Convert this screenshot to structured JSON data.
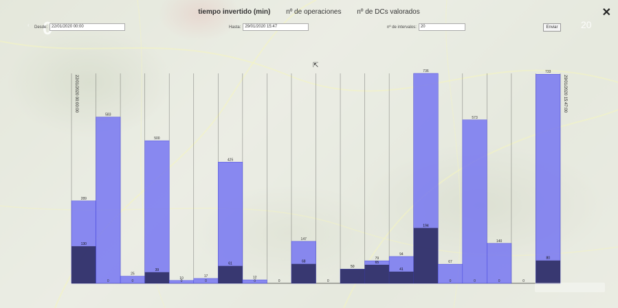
{
  "header": {
    "tabs": [
      {
        "label": "tiempo invertido (min)",
        "active": true
      },
      {
        "label": "nº de operaciones",
        "active": false
      },
      {
        "label": "nº de DCs valorados",
        "active": false
      }
    ],
    "close_icon": "close-icon"
  },
  "form": {
    "desde_label": "Desde:",
    "desde_value": "22/01/2020 00:00",
    "hasta_label": "Hasta:",
    "hasta_value": "29/01/2020 15:47",
    "intervalos_label": "nº de intervalos:",
    "intervalos_value": "20",
    "send_label": "Enviar"
  },
  "nav": {
    "left": "0",
    "right": "20"
  },
  "colors": {
    "bar_light": "#6f6ff2",
    "bar_dark": "#2a2a5a",
    "line": "#555555"
  },
  "chart_data": {
    "type": "bar",
    "stacked": true,
    "first_label": "22/01/2020 00:00:00",
    "last_label": "29/01/2020 15:47:00",
    "divider_labels": [
      "",
      "",
      "",
      "",
      "",
      "",
      "",
      "",
      "",
      "",
      "",
      "",
      "",
      "",
      "",
      "",
      "",
      "",
      "",
      "",
      ""
    ],
    "total_values": [
      289,
      583,
      25,
      500,
      10,
      17,
      425,
      12,
      0,
      147,
      0,
      50,
      79,
      94,
      736,
      67,
      573,
      140,
      0,
      733
    ],
    "dark_values": [
      130,
      0,
      0,
      39,
      0,
      0,
      61,
      0,
      0,
      68,
      0,
      50,
      65,
      41,
      194,
      0,
      0,
      0,
      0,
      80
    ],
    "total_labels": [
      "289",
      "583",
      "25",
      "500",
      "10",
      "17",
      "425",
      "12",
      "",
      "147",
      "",
      "",
      "79",
      "94",
      "736",
      "67",
      "573",
      "140",
      "",
      "733"
    ],
    "dark_labels": [
      "130",
      "0",
      "0",
      "39",
      "0",
      "0",
      "61",
      "0",
      "0",
      "68",
      "0",
      "50",
      "65",
      "41",
      "194",
      "0",
      "0",
      "0",
      "0",
      "80"
    ],
    "ymax": 736
  }
}
